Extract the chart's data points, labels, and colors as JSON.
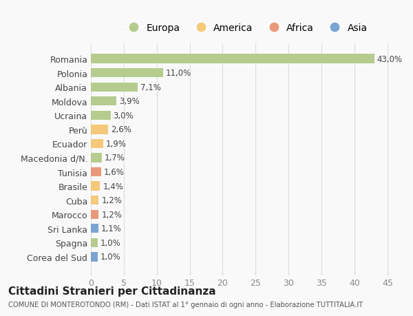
{
  "countries": [
    "Romania",
    "Polonia",
    "Albania",
    "Moldova",
    "Ucraina",
    "Perù",
    "Ecuador",
    "Macedonia d/N.",
    "Tunisia",
    "Brasile",
    "Cuba",
    "Marocco",
    "Sri Lanka",
    "Spagna",
    "Corea del Sud"
  ],
  "values": [
    43.0,
    11.0,
    7.1,
    3.9,
    3.0,
    2.6,
    1.9,
    1.7,
    1.6,
    1.4,
    1.2,
    1.2,
    1.1,
    1.0,
    1.0
  ],
  "labels": [
    "43,0%",
    "11,0%",
    "7,1%",
    "3,9%",
    "3,0%",
    "2,6%",
    "1,9%",
    "1,7%",
    "1,6%",
    "1,4%",
    "1,2%",
    "1,2%",
    "1,1%",
    "1,0%",
    "1,0%"
  ],
  "continents": [
    "Europa",
    "Europa",
    "Europa",
    "Europa",
    "Europa",
    "America",
    "America",
    "Europa",
    "Africa",
    "America",
    "America",
    "Africa",
    "Asia",
    "Europa",
    "Asia"
  ],
  "continent_colors": {
    "Europa": "#b5cc8e",
    "America": "#f5c97a",
    "Africa": "#e8997a",
    "Asia": "#7aa5d2"
  },
  "legend_order": [
    "Europa",
    "America",
    "Africa",
    "Asia"
  ],
  "title": "Cittadini Stranieri per Cittadinanza",
  "subtitle": "COMUNE DI MONTEROTONDO (RM) - Dati ISTAT al 1° gennaio di ogni anno - Elaborazione TUTTITALIA.IT",
  "xlim": [
    0,
    47
  ],
  "xticks": [
    0,
    5,
    10,
    15,
    20,
    25,
    30,
    35,
    40,
    45
  ],
  "bg_color": "#f9f9f9",
  "grid_color": "#dddddd"
}
